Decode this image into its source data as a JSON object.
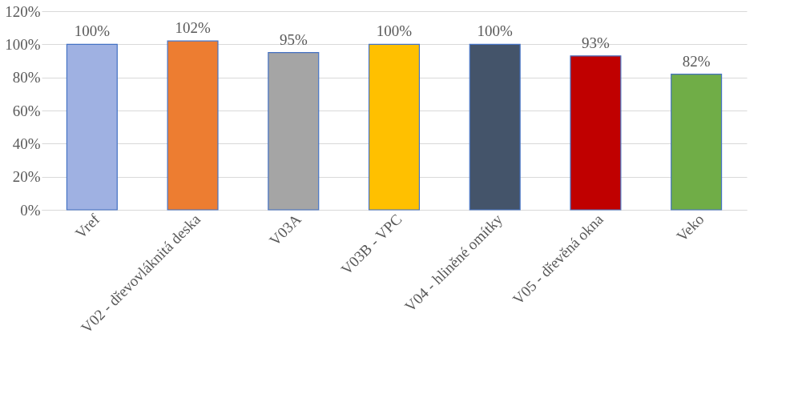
{
  "chart_data": {
    "type": "bar",
    "categories": [
      "Vref",
      "V02 - dřevovláknitá deska",
      "V03A",
      "V03B - VPC",
      "V04 - hliněné omítky",
      "V05 - dřevěná okna",
      "Veko"
    ],
    "values": [
      100,
      102,
      95,
      100,
      100,
      93,
      82
    ],
    "colors": [
      "#9fb1e2",
      "#ed7d31",
      "#a5a5a5",
      "#ffc000",
      "#44546a",
      "#c00000",
      "#70ad47"
    ],
    "value_labels": [
      "100%",
      "102%",
      "95%",
      "100%",
      "100%",
      "93%",
      "82%"
    ],
    "ylim": [
      0,
      120
    ],
    "yticks": [
      {
        "value": 0,
        "label": "0%"
      },
      {
        "value": 20,
        "label": "20%"
      },
      {
        "value": 40,
        "label": "40%"
      },
      {
        "value": 60,
        "label": "60%"
      },
      {
        "value": 80,
        "label": "80%"
      },
      {
        "value": 100,
        "label": "100%"
      },
      {
        "value": 120,
        "label": "120%"
      }
    ],
    "grid": "y"
  }
}
